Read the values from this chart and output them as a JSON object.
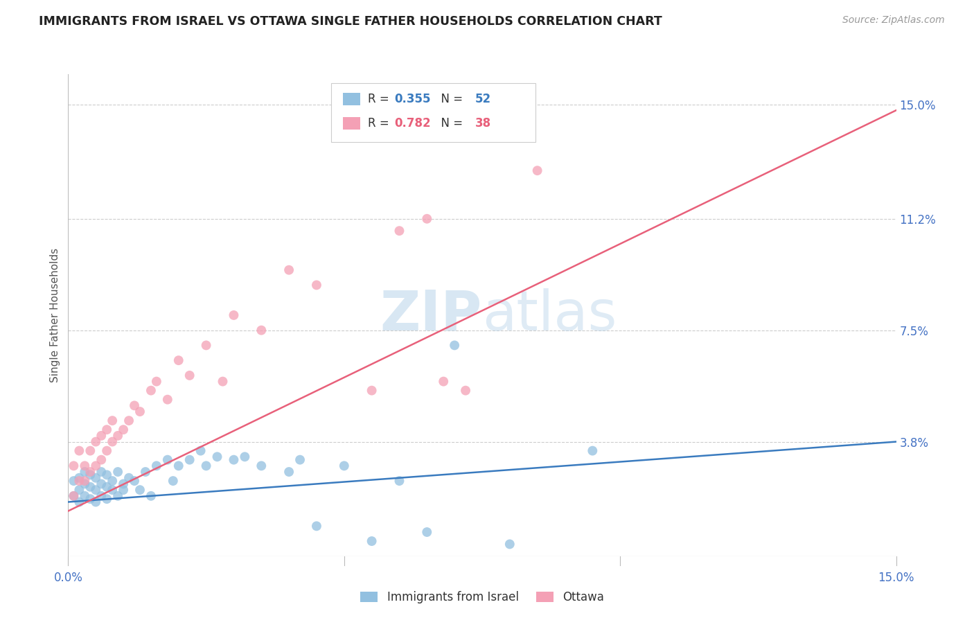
{
  "title": "IMMIGRANTS FROM ISRAEL VS OTTAWA SINGLE FATHER HOUSEHOLDS CORRELATION CHART",
  "source": "Source: ZipAtlas.com",
  "ylabel": "Single Father Households",
  "ytick_labels": [
    "15.0%",
    "11.2%",
    "7.5%",
    "3.8%"
  ],
  "ytick_values": [
    0.15,
    0.112,
    0.075,
    0.038
  ],
  "xlim": [
    0.0,
    0.15
  ],
  "ylim": [
    0.0,
    0.16
  ],
  "watermark": "ZIPatlas",
  "legend_1_label": "Immigrants from Israel",
  "legend_1_R": "0.355",
  "legend_1_N": "52",
  "legend_2_label": "Ottawa",
  "legend_2_R": "0.782",
  "legend_2_N": "38",
  "color_blue": "#92c0e0",
  "color_pink": "#f4a0b5",
  "color_blue_dark": "#3a7bbf",
  "color_pink_dark": "#e8607a",
  "color_axis": "#4472c4",
  "blue_scatter_x": [
    0.001,
    0.001,
    0.002,
    0.002,
    0.002,
    0.003,
    0.003,
    0.003,
    0.004,
    0.004,
    0.004,
    0.005,
    0.005,
    0.005,
    0.006,
    0.006,
    0.006,
    0.007,
    0.007,
    0.007,
    0.008,
    0.008,
    0.009,
    0.009,
    0.01,
    0.01,
    0.011,
    0.012,
    0.013,
    0.014,
    0.015,
    0.016,
    0.018,
    0.019,
    0.02,
    0.022,
    0.024,
    0.025,
    0.027,
    0.03,
    0.032,
    0.035,
    0.04,
    0.042,
    0.045,
    0.05,
    0.055,
    0.06,
    0.065,
    0.07,
    0.08,
    0.095
  ],
  "blue_scatter_y": [
    0.02,
    0.025,
    0.018,
    0.022,
    0.026,
    0.02,
    0.024,
    0.028,
    0.019,
    0.023,
    0.027,
    0.018,
    0.022,
    0.026,
    0.02,
    0.024,
    0.028,
    0.019,
    0.023,
    0.027,
    0.025,
    0.022,
    0.02,
    0.028,
    0.024,
    0.022,
    0.026,
    0.025,
    0.022,
    0.028,
    0.02,
    0.03,
    0.032,
    0.025,
    0.03,
    0.032,
    0.035,
    0.03,
    0.033,
    0.032,
    0.033,
    0.03,
    0.028,
    0.032,
    0.01,
    0.03,
    0.005,
    0.025,
    0.008,
    0.07,
    0.004,
    0.035
  ],
  "pink_scatter_x": [
    0.001,
    0.001,
    0.002,
    0.002,
    0.003,
    0.003,
    0.004,
    0.004,
    0.005,
    0.005,
    0.006,
    0.006,
    0.007,
    0.007,
    0.008,
    0.008,
    0.009,
    0.01,
    0.011,
    0.012,
    0.013,
    0.015,
    0.016,
    0.018,
    0.02,
    0.022,
    0.025,
    0.028,
    0.03,
    0.035,
    0.04,
    0.045,
    0.055,
    0.06,
    0.065,
    0.068,
    0.072,
    0.085
  ],
  "pink_scatter_y": [
    0.02,
    0.03,
    0.025,
    0.035,
    0.025,
    0.03,
    0.028,
    0.035,
    0.03,
    0.038,
    0.032,
    0.04,
    0.035,
    0.042,
    0.038,
    0.045,
    0.04,
    0.042,
    0.045,
    0.05,
    0.048,
    0.055,
    0.058,
    0.052,
    0.065,
    0.06,
    0.07,
    0.058,
    0.08,
    0.075,
    0.095,
    0.09,
    0.055,
    0.108,
    0.112,
    0.058,
    0.055,
    0.128
  ],
  "blue_line_x": [
    0.0,
    0.15
  ],
  "blue_line_y": [
    0.018,
    0.038
  ],
  "pink_line_x": [
    0.0,
    0.15
  ],
  "pink_line_y": [
    0.015,
    0.148
  ]
}
